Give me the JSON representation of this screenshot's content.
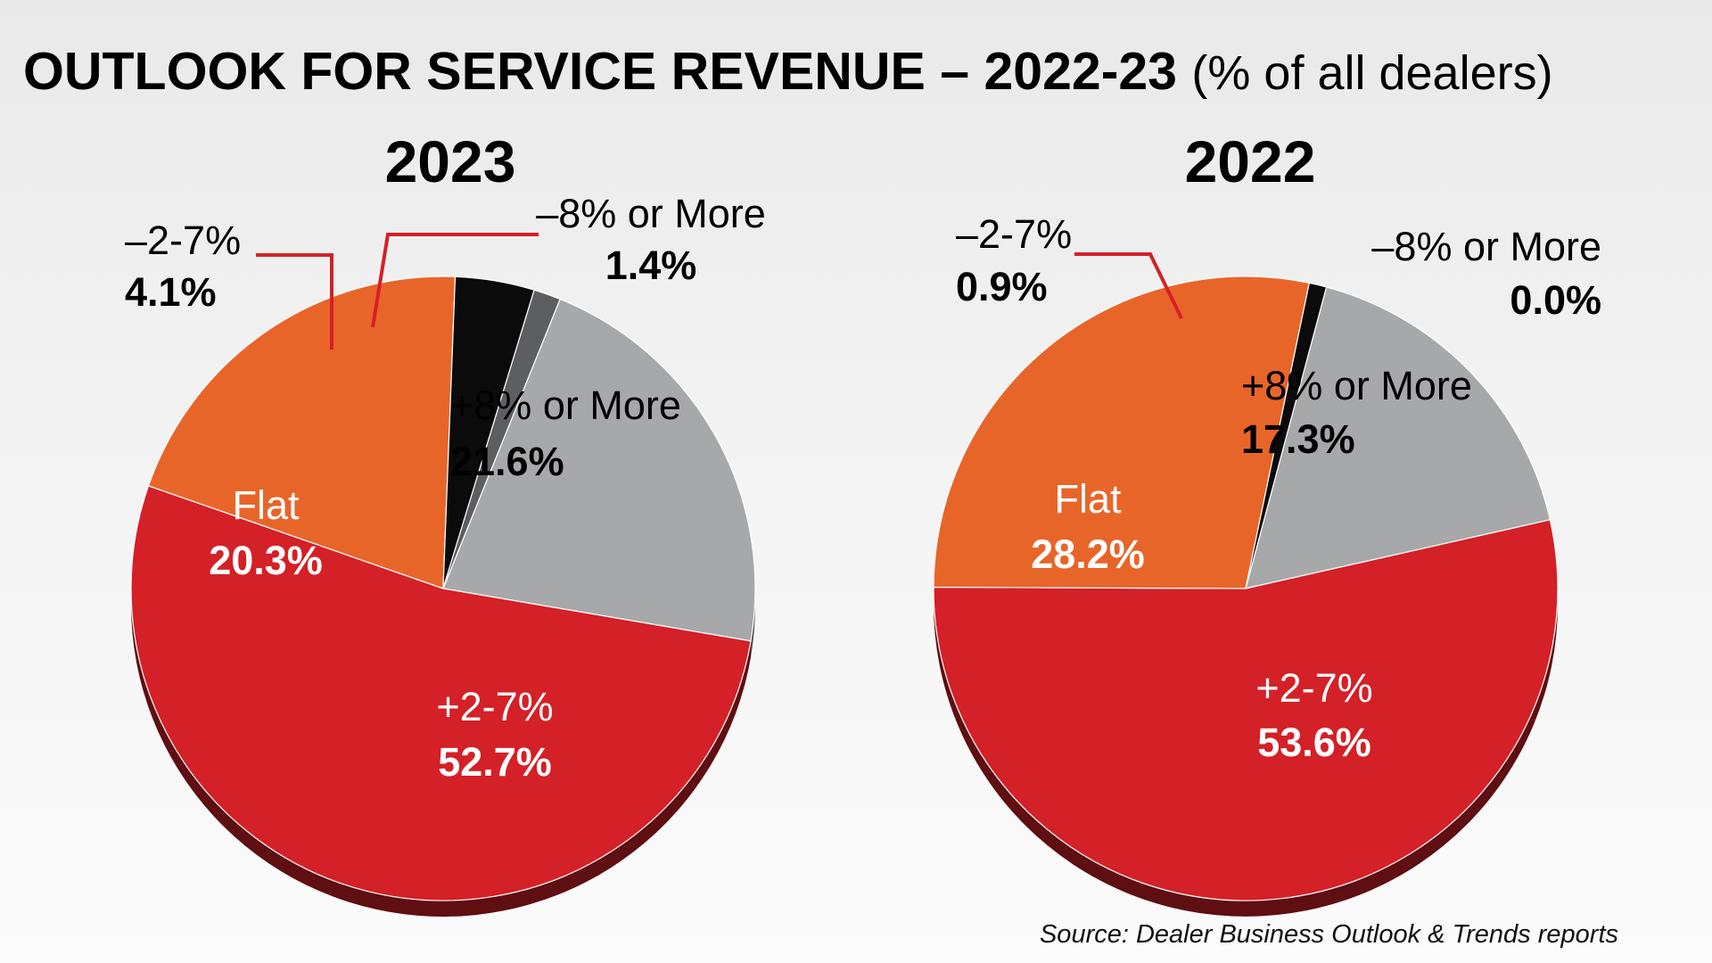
{
  "title": {
    "main": "OUTLOOK FOR SERVICE REVENUE – 2022-23",
    "sub": "(% of all dealers)"
  },
  "source": "Source: Dealer Business Outlook & Trends reports",
  "colors": {
    "plus8": "#a7a8aa",
    "plus2_7": "#d42027",
    "flat": "#e8652a",
    "minus2_7": "#0b0b0b",
    "minus8": "#5d5e60",
    "leader": "#d42027"
  },
  "chart_data": [
    {
      "type": "pie",
      "title": "2023",
      "slices": [
        {
          "label": "+8% or More",
          "value": 21.6,
          "display": "21.6%",
          "color": "#a7a8aa"
        },
        {
          "label": "+2-7%",
          "value": 52.7,
          "display": "52.7%",
          "color": "#d42027"
        },
        {
          "label": "Flat",
          "value": 20.3,
          "display": "20.3%",
          "color": "#e8652a"
        },
        {
          "label": "–2-7%",
          "value": 4.1,
          "display": "4.1%",
          "color": "#0b0b0b"
        },
        {
          "label": "–8% or More",
          "value": 1.4,
          "display": "1.4%",
          "color": "#5d5e60"
        }
      ]
    },
    {
      "type": "pie",
      "title": "2022",
      "slices": [
        {
          "label": "+8% or More",
          "value": 17.3,
          "display": "17.3%",
          "color": "#a7a8aa"
        },
        {
          "label": "+2-7%",
          "value": 53.6,
          "display": "53.6%",
          "color": "#d42027"
        },
        {
          "label": "Flat",
          "value": 28.2,
          "display": "28.2%",
          "color": "#e8652a"
        },
        {
          "label": "–2-7%",
          "value": 0.9,
          "display": "0.9%",
          "color": "#0b0b0b"
        },
        {
          "label": "–8% or More",
          "value": 0.0,
          "display": "0.0%",
          "color": "#5d5e60"
        }
      ]
    }
  ]
}
